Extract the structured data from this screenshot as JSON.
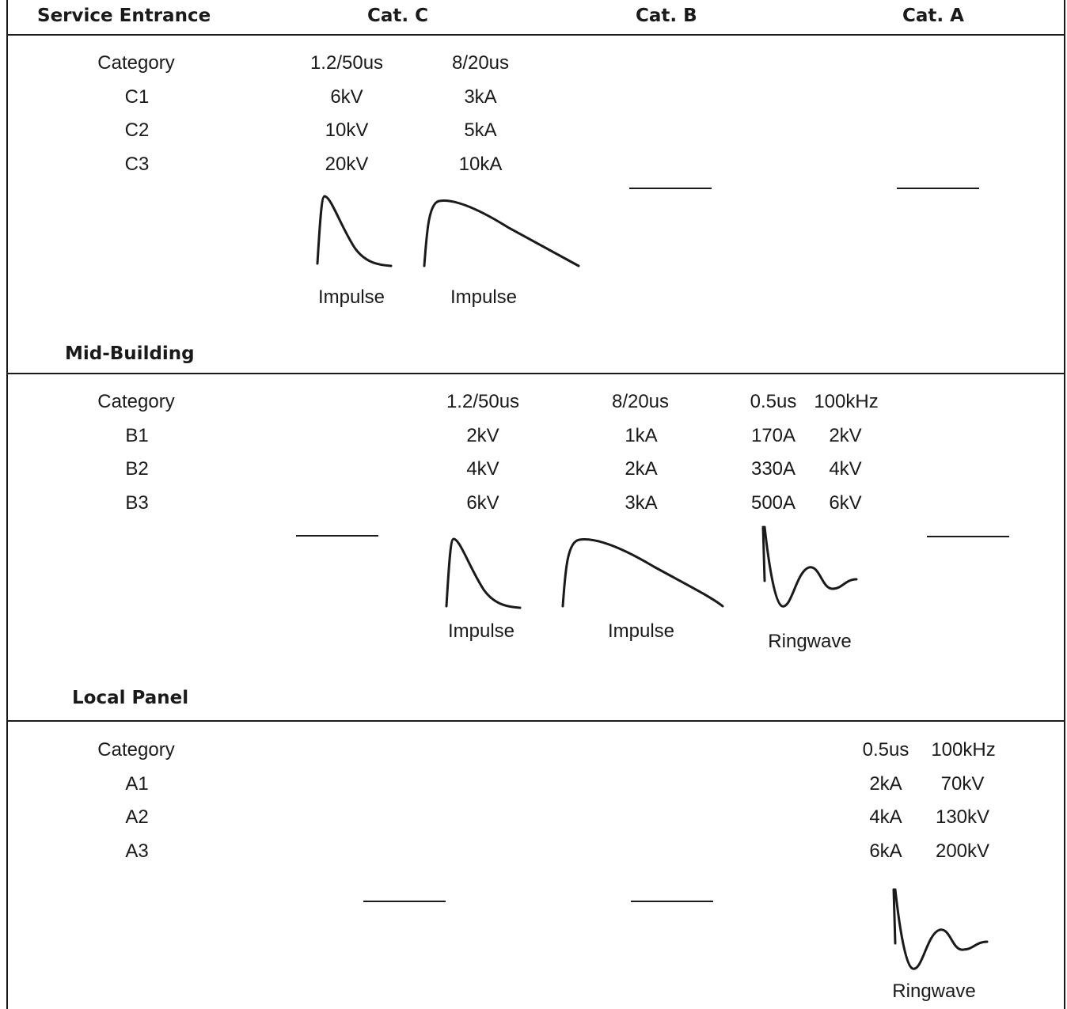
{
  "header": {
    "service_entrance": "Service Entrance",
    "cat_c": "Cat. C",
    "cat_b": "Cat. B",
    "cat_a": "Cat. A"
  },
  "service_section": {
    "category_label": "Category",
    "col1_header": "1.2/50us",
    "col2_header": "8/20us",
    "rows": [
      {
        "name": "C1",
        "voltage": "6kV",
        "current": "3kA"
      },
      {
        "name": "C2",
        "voltage": "10kV",
        "current": "5kA"
      },
      {
        "name": "C3",
        "voltage": "20kV",
        "current": "10kA"
      }
    ],
    "wave1_label": "Impulse",
    "wave2_label": "Impulse"
  },
  "mid_section": {
    "title": "Mid-Building",
    "category_label": "Category",
    "col1_header": "1.2/50us",
    "col2_header": "8/20us",
    "ring_header_a": "0.5us",
    "ring_header_b": "100kHz",
    "rows": [
      {
        "name": "B1",
        "voltage": "2kV",
        "current": "1kA",
        "ring_current": "170A",
        "ring_voltage": "2kV"
      },
      {
        "name": "B2",
        "voltage": "4kV",
        "current": "2kA",
        "ring_current": "330A",
        "ring_voltage": "4kV"
      },
      {
        "name": "B3",
        "voltage": "6kV",
        "current": "3kA",
        "ring_current": "500A",
        "ring_voltage": "6kV"
      }
    ],
    "wave1_label": "Impulse",
    "wave2_label": "Impulse",
    "wave3_label": "Ringwave"
  },
  "local_section": {
    "title": "Local Panel",
    "category_label": "Category",
    "ring_header_a": "0.5us",
    "ring_header_b": "100kHz",
    "rows": [
      {
        "name": "A1",
        "current": "2kA",
        "voltage": "70kV"
      },
      {
        "name": "A2",
        "current": "4kA",
        "voltage": "130kV"
      },
      {
        "name": "A3",
        "current": "6kA",
        "voltage": "200kV"
      }
    ],
    "wave_label": "Ringwave"
  }
}
